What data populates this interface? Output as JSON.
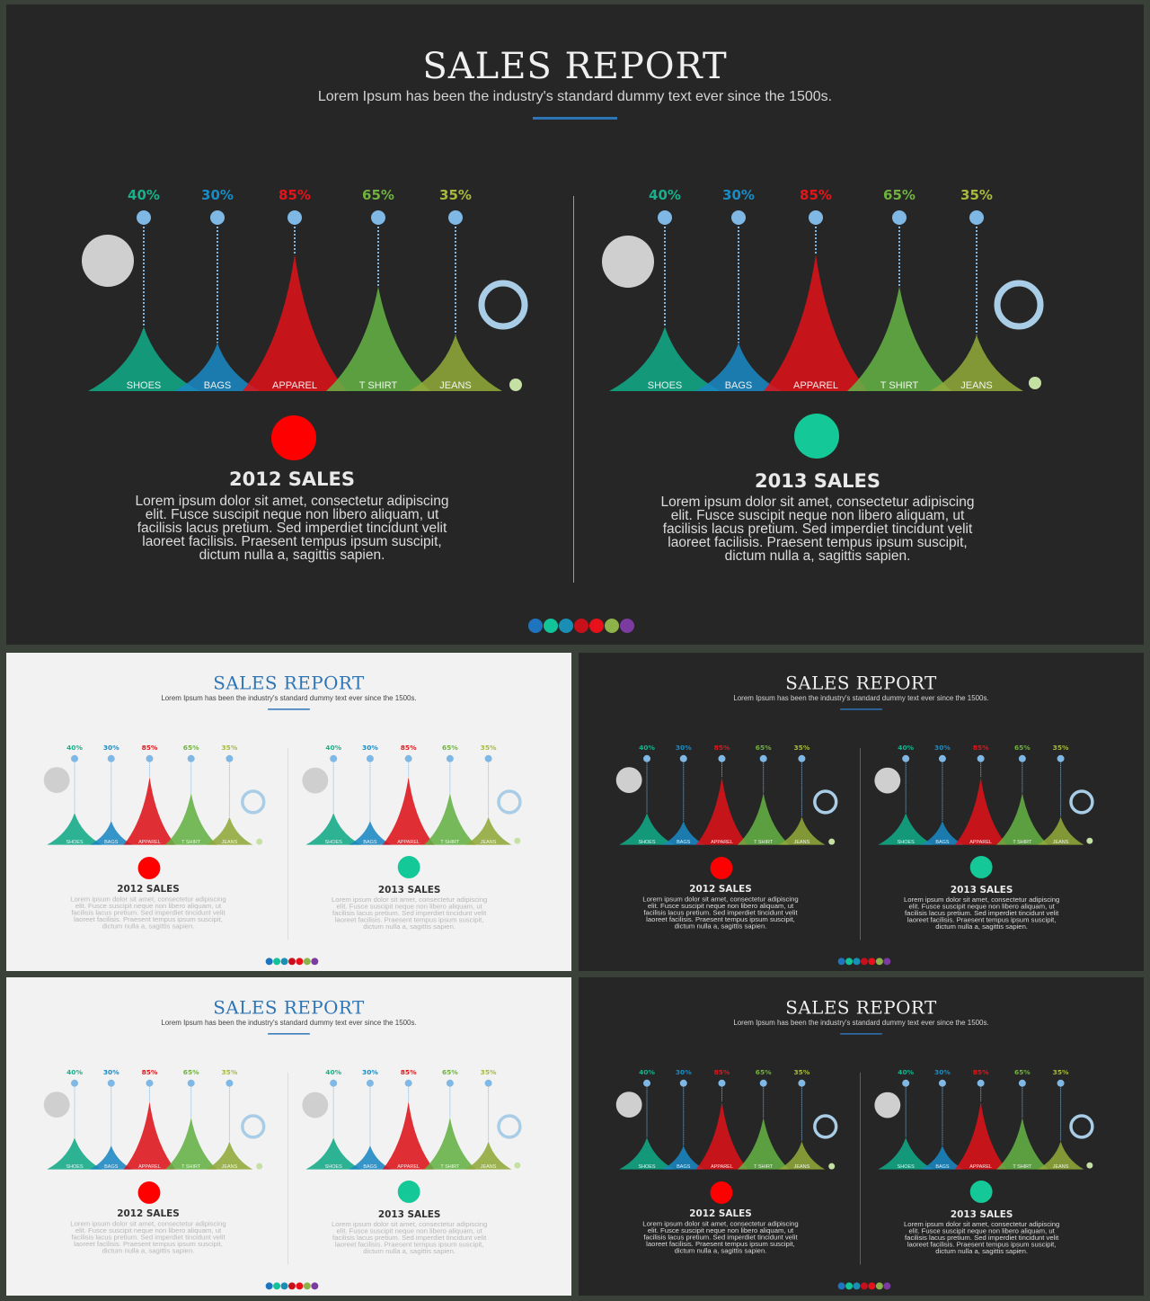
{
  "slides": [
    {
      "theme": "dark"
    },
    {
      "theme": "light"
    },
    {
      "theme": "dark"
    },
    {
      "theme": "light"
    },
    {
      "theme": "dark"
    }
  ],
  "title": "SALES REPORT",
  "subtitle": "Lorem Ipsum has been the industry's standard dummy text ever since the 1500s.",
  "body_text": "Lorem ipsum dolor sit amet, consectetur adipiscing elit. Fusce suscipit neque non libero aliquam, ut facilisis lacus pretium. Sed imperdiet tincidunt velit laoreet facilisis. Praesent tempus ipsum suscipit, dictum nulla a, sagittis sapien.",
  "body_lines": [
    "Lorem ipsum dolor sit amet, consectetur adipiscing",
    "elit. Fusce suscipit neque non libero aliquam, ut",
    "facilisis lacus pretium. Sed imperdiet tincidunt velit",
    "laoreet facilisis. Praesent tempus ipsum suscipit,",
    "dictum nulla a, sagittis sapien."
  ],
  "nav_dot_colors": [
    "#1f74c0",
    "#12c39a",
    "#1a8fb5",
    "#c8101a",
    "#e8101a",
    "#8db24a",
    "#7b3ba0"
  ],
  "colors": {
    "pin": "#7fb8e4",
    "pin_line": "#7fb8e4",
    "grey_circle": "#cfcfcf",
    "ring": "#a9cde6",
    "end_dot": "#c5e0a3"
  },
  "chart_data": [
    {
      "type": "area",
      "title": "2012 SALES",
      "categories": [
        "SHOES",
        "BAGS",
        "APPAREL",
        "T SHIRT",
        "JEANS"
      ],
      "values": [
        40,
        30,
        85,
        65,
        35
      ],
      "value_labels": [
        "40%",
        "30%",
        "85%",
        "65%",
        "35%"
      ],
      "value_label_colors": [
        "#17b08a",
        "#1a8cc5",
        "#e3151b",
        "#6fb23f",
        "#a9b93a"
      ],
      "series_colors": [
        "#12a886",
        "#1a86c2",
        "#dc1219",
        "#64b146",
        "#8fa83a"
      ],
      "marker_color": "#ff0000",
      "ylim": [
        0,
        100
      ]
    },
    {
      "type": "area",
      "title": "2013 SALES",
      "categories": [
        "SHOES",
        "BAGS",
        "APPAREL",
        "T SHIRT",
        "JEANS"
      ],
      "values": [
        40,
        30,
        85,
        65,
        35
      ],
      "value_labels": [
        "40%",
        "30%",
        "85%",
        "65%",
        "35%"
      ],
      "value_label_colors": [
        "#17b08a",
        "#1a8cc5",
        "#e3151b",
        "#6fb23f",
        "#a9b93a"
      ],
      "series_colors": [
        "#12a886",
        "#1a86c2",
        "#dc1219",
        "#64b146",
        "#8fa83a"
      ],
      "marker_color": "#14c997",
      "ylim": [
        0,
        100
      ]
    }
  ]
}
